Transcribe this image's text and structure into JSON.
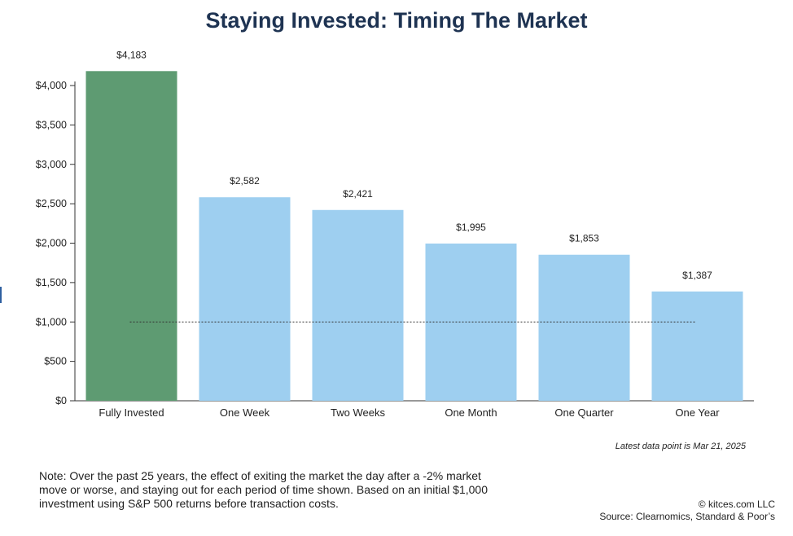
{
  "colors": {
    "highlight_bar": "#5e9b72",
    "bar": "#9ecff0",
    "title": "#1e3352",
    "axis": "#333333",
    "reference_line": "#333333"
  },
  "chart_data": {
    "type": "bar",
    "title": "Staying Invested: Timing The Market",
    "categories": [
      "Fully Invested",
      "One Week",
      "Two Weeks",
      "One Month",
      "One Quarter",
      "One Year"
    ],
    "values": [
      4183,
      2582,
      2421,
      1995,
      1853,
      1387
    ],
    "value_labels": [
      "$4,183",
      "$2,582",
      "$2,421",
      "$1,995",
      "$1,853",
      "$1,387"
    ],
    "highlight_index": 0,
    "ylim": [
      0,
      4000
    ],
    "yticks": [
      0,
      500,
      1000,
      1500,
      2000,
      2500,
      3000,
      3500,
      4000
    ],
    "ytick_labels": [
      "$0",
      "$500",
      "$1,000",
      "$1,500",
      "$2,000",
      "$2,500",
      "$3,000",
      "$3,500",
      "$4,000"
    ],
    "reference_line": 1000,
    "grid": false,
    "xlabel": "",
    "ylabel": ""
  },
  "notes": {
    "latest": "Latest data point is Mar 21, 2025",
    "footnote": "Note: Over the past 25 years, the effect of exiting the market the day after a -2% market move or worse, and staying out for each period of time shown. Based on an initial $1,000 investment using S&P 500 returns before transaction costs.",
    "copyright": "© kitces.com LLC",
    "source": "Source: Clearnomics, Standard & Poor’s"
  }
}
